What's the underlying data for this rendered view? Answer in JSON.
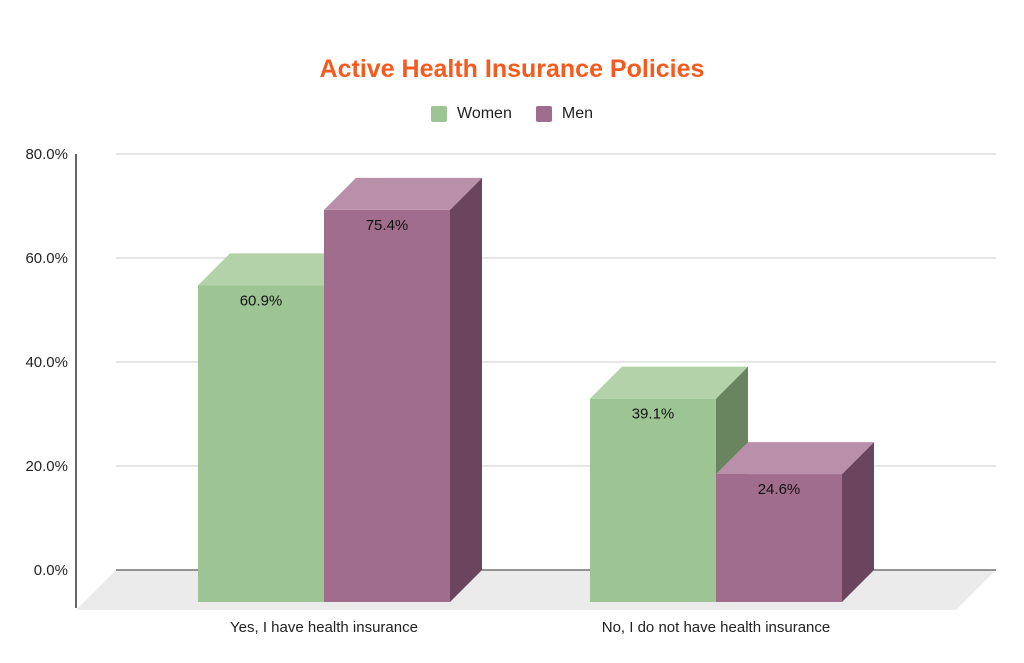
{
  "chart_data": {
    "type": "bar",
    "title": "Active Health Insurance Policies",
    "categories": [
      "Yes, I have health insurance",
      "No, I do not have health insurance"
    ],
    "series": [
      {
        "name": "Women",
        "values": [
          60.9,
          39.1
        ],
        "color": "#9dc593",
        "top_color": "#b3d2a9",
        "side_color": "#688560"
      },
      {
        "name": "Men",
        "values": [
          75.4,
          24.6
        ],
        "color": "#a16d8c",
        "top_color": "#b98fa9",
        "side_color": "#6b445d"
      }
    ],
    "data_labels": [
      [
        "60.9%",
        "39.1%"
      ],
      [
        "75.4%",
        "24.6%"
      ]
    ],
    "ylim": [
      0,
      80
    ],
    "yticks": [
      0,
      20,
      40,
      60,
      80
    ],
    "ytick_labels": [
      "0.0%",
      "20.0%",
      "40.0%",
      "60.0%",
      "80.0%"
    ],
    "xlabel": "",
    "ylabel": "",
    "grid": true,
    "legend_position": "top-center"
  }
}
